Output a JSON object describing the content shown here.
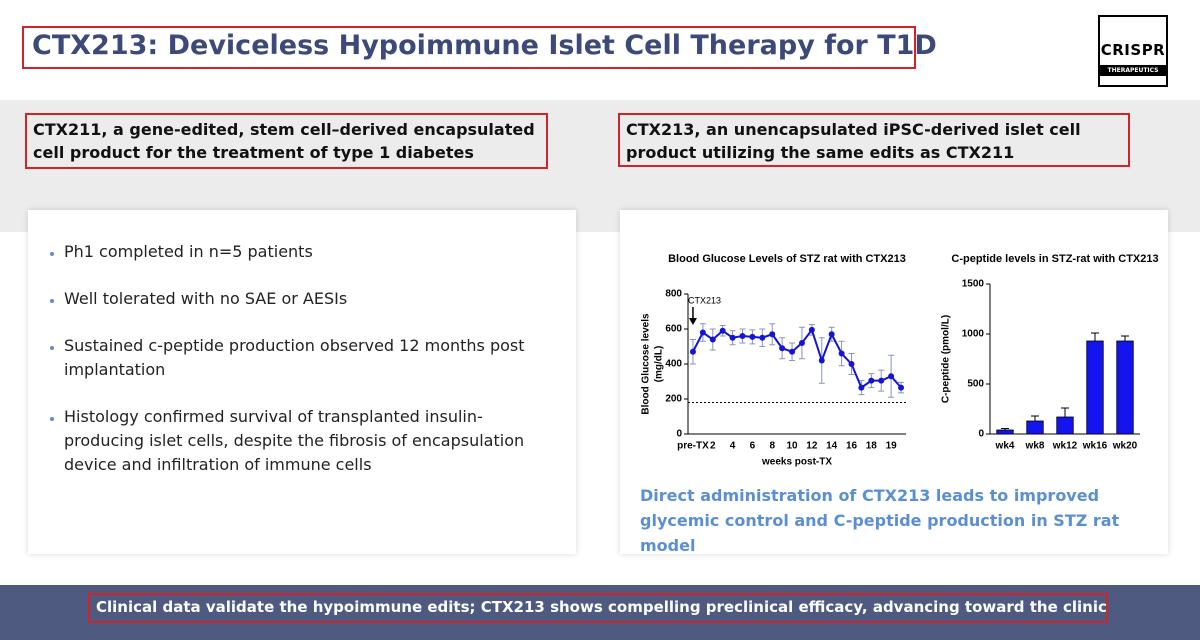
{
  "header": {
    "title": "CTX213: Deviceless Hypoimmune Islet Cell Therapy for T1D",
    "logo": {
      "name": "CRISPR",
      "tagline": "THERAPEUTICS"
    }
  },
  "left": {
    "heading": "CTX211, a gene-edited, stem cell–derived encapsulated cell product for the treatment of type 1 diabetes",
    "bullets": [
      "Ph1 completed in n=5 patients",
      "Well tolerated with no SAE or AESIs",
      "Sustained c-peptide production observed 12 months post implantation",
      "Histology confirmed survival of transplanted insulin-producing islet cells, despite the fibrosis of encapsulation device and infiltration of immune cells"
    ]
  },
  "right": {
    "heading": "CTX213, an unencapsulated iPSC-derived islet cell product utilizing the same edits as CTX211",
    "caption": "Direct administration of CTX213 leads to improved glycemic control and C-peptide production in STZ rat model"
  },
  "chart_data": [
    {
      "type": "line",
      "title": "Blood Glucose Levels of STZ rat with CTX213",
      "xlabel": "weeks post-TX",
      "ylabel": [
        "Blood Glucose levels",
        "(mg/dL)"
      ],
      "categories": [
        "pre-TX",
        null,
        "2",
        null,
        "4",
        null,
        "6",
        null,
        "8",
        null,
        "10",
        null,
        "12",
        null,
        "14",
        null,
        "16",
        null,
        "18",
        null,
        "19",
        null
      ],
      "series": [
        {
          "color": "#1414d4",
          "values": [
            470,
            580,
            540,
            590,
            550,
            560,
            555,
            550,
            570,
            490,
            470,
            520,
            595,
            420,
            570,
            460,
            400,
            265,
            305,
            305,
            330,
            265
          ],
          "errors": [
            70,
            50,
            60,
            30,
            40,
            40,
            40,
            50,
            60,
            60,
            50,
            90,
            30,
            130,
            40,
            70,
            60,
            40,
            40,
            60,
            120,
            30
          ]
        }
      ],
      "ylim": [
        0,
        800
      ],
      "yticks": [
        0,
        200,
        400,
        600,
        800
      ],
      "reference_line": 180,
      "annotation": "CTX213"
    },
    {
      "type": "bar",
      "title": "C-peptide levels in STZ-rat with CTX213",
      "ylabel": "C-peptide (pmol/L)",
      "categories": [
        "wk4",
        "wk8",
        "wk12",
        "wk16",
        "wk20"
      ],
      "values": [
        40,
        130,
        170,
        930,
        930
      ],
      "errors": [
        15,
        50,
        90,
        80,
        50
      ],
      "color": "#1414f0",
      "ylim": [
        0,
        1500
      ],
      "yticks": [
        0,
        500,
        1000,
        1500
      ]
    }
  ],
  "footer": {
    "text": "Clinical data validate the hypoimmune edits; CTX213 shows compelling preclinical efficacy, advancing toward the clinic"
  }
}
